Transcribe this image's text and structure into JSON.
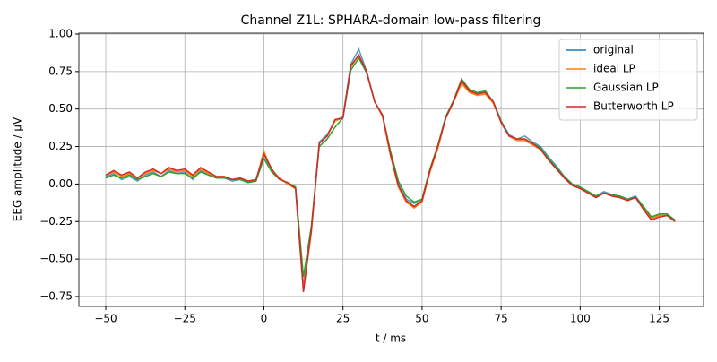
{
  "chart_data": {
    "type": "line",
    "title": "Channel Z1L: SPHARA-domain low-pass filtering",
    "x_label": "t / ms",
    "y_label": "EEG amplitude / µV",
    "x": [
      -50,
      -47.5,
      -45,
      -42.5,
      -40,
      -37.5,
      -35,
      -32.5,
      -30,
      -27.5,
      -25,
      -22.5,
      -20,
      -17.5,
      -15,
      -12.5,
      -10,
      -7.5,
      -5,
      -2.5,
      0,
      2.5,
      5,
      7.5,
      10,
      12.5,
      15,
      17.5,
      20,
      22.5,
      25,
      27.5,
      30,
      32.5,
      35,
      37.5,
      40,
      42.5,
      45,
      47.5,
      50,
      52.5,
      55,
      57.5,
      60,
      62.5,
      65,
      67.5,
      70,
      72.5,
      75,
      77.5,
      80,
      82.5,
      85,
      87.5,
      90,
      92.5,
      95,
      97.5,
      100,
      102.5,
      105,
      107.5,
      110,
      112.5,
      115,
      117.5,
      120,
      122.5,
      125,
      127.5,
      130
    ],
    "series": [
      {
        "name": "original",
        "color": "#1f77b4",
        "values": [
          0.05,
          0.07,
          0.03,
          0.05,
          0.02,
          0.06,
          0.08,
          0.05,
          0.09,
          0.07,
          0.08,
          0.03,
          0.09,
          0.06,
          0.04,
          0.04,
          0.02,
          0.03,
          0.01,
          0.02,
          0.2,
          0.08,
          0.04,
          0.0,
          -0.02,
          -0.68,
          -0.3,
          0.28,
          0.33,
          0.42,
          0.45,
          0.8,
          0.9,
          0.75,
          0.55,
          0.45,
          0.2,
          0.0,
          -0.1,
          -0.13,
          -0.1,
          0.1,
          0.25,
          0.45,
          0.55,
          0.68,
          0.62,
          0.6,
          0.62,
          0.55,
          0.42,
          0.33,
          0.3,
          0.32,
          0.28,
          0.25,
          0.18,
          0.12,
          0.05,
          0.0,
          -0.02,
          -0.05,
          -0.08,
          -0.05,
          -0.07,
          -0.08,
          -0.1,
          -0.08,
          -0.15,
          -0.22,
          -0.2,
          -0.2,
          -0.25
        ]
      },
      {
        "name": "ideal LP",
        "color": "#ff7f0e",
        "values": [
          0.06,
          0.08,
          0.05,
          0.07,
          0.04,
          0.07,
          0.09,
          0.07,
          0.1,
          0.08,
          0.09,
          0.05,
          0.1,
          0.07,
          0.05,
          0.05,
          0.03,
          0.04,
          0.02,
          0.02,
          0.22,
          0.09,
          0.04,
          0.0,
          -0.03,
          -0.7,
          -0.32,
          0.27,
          0.32,
          0.42,
          0.44,
          0.78,
          0.86,
          0.74,
          0.55,
          0.45,
          0.19,
          -0.02,
          -0.12,
          -0.16,
          -0.12,
          0.08,
          0.24,
          0.44,
          0.55,
          0.67,
          0.61,
          0.59,
          0.6,
          0.54,
          0.41,
          0.32,
          0.29,
          0.29,
          0.26,
          0.23,
          0.16,
          0.1,
          0.04,
          -0.01,
          -0.03,
          -0.06,
          -0.09,
          -0.06,
          -0.08,
          -0.09,
          -0.11,
          -0.09,
          -0.16,
          -0.23,
          -0.21,
          -0.21,
          -0.25
        ]
      },
      {
        "name": "Gaussian LP",
        "color": "#2ca02c",
        "values": [
          0.04,
          0.06,
          0.04,
          0.06,
          0.03,
          0.05,
          0.07,
          0.05,
          0.08,
          0.07,
          0.07,
          0.04,
          0.08,
          0.06,
          0.04,
          0.04,
          0.03,
          0.03,
          0.01,
          0.02,
          0.17,
          0.08,
          0.03,
          0.01,
          -0.02,
          -0.62,
          -0.28,
          0.25,
          0.3,
          0.38,
          0.44,
          0.76,
          0.84,
          0.74,
          0.55,
          0.46,
          0.22,
          0.02,
          -0.08,
          -0.12,
          -0.1,
          0.1,
          0.26,
          0.45,
          0.56,
          0.7,
          0.63,
          0.61,
          0.62,
          0.55,
          0.42,
          0.32,
          0.3,
          0.3,
          0.27,
          0.24,
          0.17,
          0.11,
          0.05,
          0.0,
          -0.02,
          -0.05,
          -0.08,
          -0.06,
          -0.07,
          -0.08,
          -0.1,
          -0.09,
          -0.15,
          -0.22,
          -0.2,
          -0.2,
          -0.24
        ]
      },
      {
        "name": "Butterworth LP",
        "color": "#d62728",
        "values": [
          0.06,
          0.09,
          0.06,
          0.08,
          0.04,
          0.08,
          0.1,
          0.07,
          0.11,
          0.09,
          0.1,
          0.06,
          0.11,
          0.08,
          0.05,
          0.05,
          0.03,
          0.04,
          0.02,
          0.03,
          0.2,
          0.1,
          0.03,
          0.01,
          -0.03,
          -0.72,
          -0.31,
          0.27,
          0.32,
          0.43,
          0.44,
          0.79,
          0.86,
          0.75,
          0.55,
          0.46,
          0.2,
          -0.01,
          -0.11,
          -0.15,
          -0.11,
          0.09,
          0.25,
          0.44,
          0.55,
          0.69,
          0.62,
          0.6,
          0.61,
          0.55,
          0.41,
          0.32,
          0.3,
          0.3,
          0.27,
          0.23,
          0.16,
          0.1,
          0.04,
          -0.01,
          -0.03,
          -0.06,
          -0.09,
          -0.06,
          -0.08,
          -0.09,
          -0.11,
          -0.09,
          -0.17,
          -0.24,
          -0.22,
          -0.21,
          -0.25
        ]
      }
    ],
    "xlim": [
      -58.5,
      139
    ],
    "ylim": [
      -0.816,
      1.006
    ],
    "xticks": [
      {
        "value": -50,
        "label": "−50"
      },
      {
        "value": -25,
        "label": "−25"
      },
      0,
      25,
      50,
      75,
      100,
      125
    ],
    "yticks": [
      {
        "value": -0.75,
        "label": "−0.75"
      },
      {
        "value": -0.5,
        "label": "−0.50"
      },
      {
        "value": -0.25,
        "label": "−0.25"
      },
      {
        "value": 0,
        "label": "0.00"
      },
      {
        "value": 0.25,
        "label": "0.25"
      },
      {
        "value": 0.5,
        "label": "0.50"
      },
      {
        "value": 0.75,
        "label": "0.75"
      },
      {
        "value": 1,
        "label": "1.00"
      }
    ],
    "grid": true,
    "legend": "upper right"
  }
}
